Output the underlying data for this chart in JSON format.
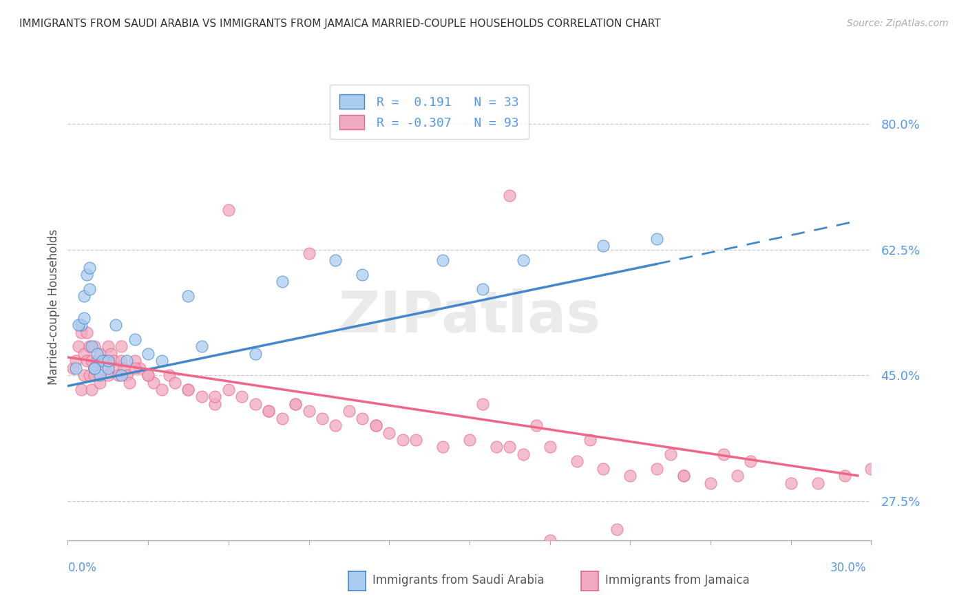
{
  "title": "IMMIGRANTS FROM SAUDI ARABIA VS IMMIGRANTS FROM JAMAICA MARRIED-COUPLE HOUSEHOLDS CORRELATION CHART",
  "source": "Source: ZipAtlas.com",
  "ylabel": "Married-couple Households",
  "y_ticks": [
    27.5,
    45.0,
    62.5,
    80.0
  ],
  "y_tick_labels": [
    "27.5%",
    "45.0%",
    "62.5%",
    "80.0%"
  ],
  "xlim": [
    0.0,
    30.0
  ],
  "ylim": [
    22.0,
    87.0
  ],
  "color_saudi": "#aaccf0",
  "color_jamaica": "#f0aac0",
  "color_saudi_line": "#5599ee",
  "color_saudi_line_dark": "#4488cc",
  "color_jamaica_line": "#ee6688",
  "color_ytick": "#5599ee",
  "color_title": "#333333",
  "color_source": "#aaaaaa",
  "watermark": "ZIPatlas",
  "saudi_x": [
    0.3,
    0.5,
    0.6,
    0.7,
    0.8,
    0.9,
    1.0,
    1.1,
    1.2,
    1.3,
    1.5,
    1.8,
    2.2,
    3.5,
    5.0,
    7.0,
    8.0,
    10.0,
    11.0,
    14.0,
    15.5,
    17.0,
    20.0,
    0.4,
    0.6,
    0.8,
    1.0,
    1.5,
    2.0,
    2.5,
    3.0,
    4.5,
    22.0
  ],
  "saudi_y": [
    46.0,
    52.0,
    56.0,
    59.0,
    60.0,
    49.0,
    46.0,
    48.0,
    45.0,
    47.0,
    46.0,
    52.0,
    47.0,
    47.0,
    49.0,
    48.0,
    58.0,
    61.0,
    59.0,
    61.0,
    57.0,
    61.0,
    63.0,
    52.0,
    53.0,
    57.0,
    46.0,
    47.0,
    45.0,
    50.0,
    48.0,
    56.0,
    64.0
  ],
  "jamaica_x": [
    0.2,
    0.3,
    0.4,
    0.5,
    0.5,
    0.6,
    0.6,
    0.7,
    0.7,
    0.8,
    0.8,
    0.9,
    0.9,
    1.0,
    1.0,
    1.0,
    1.1,
    1.2,
    1.2,
    1.3,
    1.4,
    1.5,
    1.5,
    1.6,
    1.7,
    1.8,
    1.9,
    2.0,
    2.0,
    2.1,
    2.2,
    2.3,
    2.5,
    2.7,
    3.0,
    3.2,
    3.5,
    3.8,
    4.0,
    4.5,
    5.0,
    5.5,
    6.0,
    6.5,
    7.0,
    7.5,
    8.0,
    8.5,
    9.0,
    9.5,
    10.0,
    10.5,
    11.0,
    11.5,
    12.0,
    13.0,
    14.0,
    15.0,
    16.0,
    17.0,
    18.0,
    19.0,
    20.0,
    21.0,
    22.0,
    23.0,
    24.0,
    25.0,
    6.0,
    9.0,
    16.5,
    20.5,
    5.5,
    8.5,
    7.5,
    4.5,
    3.0,
    2.5,
    18.0,
    23.0,
    15.5,
    11.5,
    12.5,
    16.5,
    19.5,
    22.5,
    24.5,
    17.5,
    25.5,
    27.0,
    28.0,
    29.0,
    30.0
  ],
  "jamaica_y": [
    46.0,
    47.0,
    49.0,
    51.0,
    43.0,
    45.0,
    48.0,
    47.0,
    51.0,
    49.0,
    45.0,
    47.0,
    43.0,
    46.0,
    49.0,
    45.0,
    47.0,
    48.0,
    44.0,
    46.0,
    47.0,
    49.0,
    45.0,
    48.0,
    47.0,
    46.0,
    45.0,
    47.0,
    49.0,
    46.0,
    45.0,
    44.0,
    47.0,
    46.0,
    45.0,
    44.0,
    43.0,
    45.0,
    44.0,
    43.0,
    42.0,
    41.0,
    43.0,
    42.0,
    41.0,
    40.0,
    39.0,
    41.0,
    40.0,
    39.0,
    38.0,
    40.0,
    39.0,
    38.0,
    37.0,
    36.0,
    35.0,
    36.0,
    35.0,
    34.0,
    35.0,
    33.0,
    32.0,
    31.0,
    32.0,
    31.0,
    30.0,
    31.0,
    68.0,
    62.0,
    70.0,
    23.5,
    42.0,
    41.0,
    40.0,
    43.0,
    45.0,
    46.0,
    22.0,
    31.0,
    41.0,
    38.0,
    36.0,
    35.0,
    36.0,
    34.0,
    34.0,
    38.0,
    33.0,
    30.0,
    30.0,
    31.0,
    32.0
  ],
  "saudi_trend_x0": 0.0,
  "saudi_trend_y0": 43.5,
  "saudi_trend_x1": 22.0,
  "saudi_trend_y1": 60.5,
  "saudi_dash_x0": 22.0,
  "saudi_dash_y0": 60.5,
  "saudi_dash_x1": 29.5,
  "saudi_dash_y1": 66.5,
  "jamaica_trend_x0": 0.0,
  "jamaica_trend_y0": 47.5,
  "jamaica_trend_x1": 29.5,
  "jamaica_trend_y1": 31.0
}
